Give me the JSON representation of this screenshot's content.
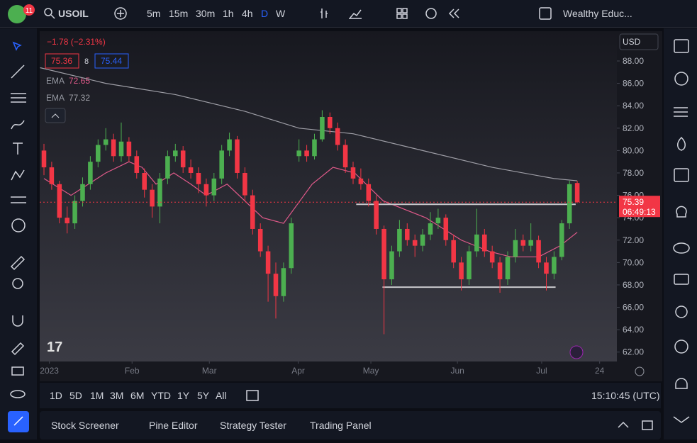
{
  "toolbar": {
    "badge": "11",
    "symbol": "USOIL",
    "intervals": [
      "5m",
      "15m",
      "30m",
      "1h",
      "4h",
      "D",
      "W"
    ],
    "layout_name": "Wealthy Educ..."
  },
  "chart_data": {
    "type": "candlestick",
    "change": "−1.78 (−2.31%)",
    "bid": "75.36",
    "spread": "8",
    "ask": "75.44",
    "currency": "USD",
    "up_color": "#4caf50",
    "down_color": "#f23645",
    "candles": [
      [
        80,
        80.6,
        77.8,
        78.5
      ],
      [
        78.5,
        79,
        76.5,
        77
      ],
      [
        77,
        77.3,
        73.5,
        74
      ],
      [
        74,
        75,
        72.6,
        73.5
      ],
      [
        73.5,
        76,
        73,
        75.5
      ],
      [
        75.5,
        77.6,
        75,
        77
      ],
      [
        77,
        79.5,
        76.5,
        79
      ],
      [
        79,
        81,
        78.5,
        80.5
      ],
      [
        80.5,
        82,
        80,
        81
      ],
      [
        81,
        81.5,
        79,
        79.5
      ],
      [
        79.5,
        82.5,
        79,
        80.8
      ],
      [
        80.8,
        81.2,
        79,
        79.5
      ],
      [
        79.5,
        80,
        77.5,
        78
      ],
      [
        78,
        78.4,
        75.8,
        76.5
      ],
      [
        76.5,
        77,
        74,
        75
      ],
      [
        75,
        78,
        73.5,
        77.5
      ],
      [
        77.5,
        80,
        77,
        79.5
      ],
      [
        79.5,
        80.6,
        79,
        80
      ],
      [
        80,
        80.4,
        78,
        78.5
      ],
      [
        78.5,
        79.2,
        77.5,
        78
      ],
      [
        78,
        78.5,
        76.2,
        77
      ],
      [
        77,
        77.5,
        75,
        76
      ],
      [
        76,
        78,
        75.5,
        77.5
      ],
      [
        77.5,
        80.5,
        77,
        80
      ],
      [
        80,
        81.6,
        79.5,
        81
      ],
      [
        81,
        81.3,
        77.5,
        78
      ],
      [
        78,
        78.5,
        75.5,
        76
      ],
      [
        76,
        76.5,
        72.5,
        73
      ],
      [
        73,
        73.5,
        70.5,
        71
      ],
      [
        71,
        71.5,
        66.5,
        69
      ],
      [
        69,
        70,
        65,
        67
      ],
      [
        67,
        70,
        66.5,
        69.5
      ],
      [
        69.5,
        74,
        69,
        73.5
      ],
      [
        79.5,
        81,
        79,
        80
      ],
      [
        80,
        80.5,
        79,
        79.5
      ],
      [
        79.5,
        81.5,
        79.2,
        81
      ],
      [
        81,
        83.6,
        80.8,
        83
      ],
      [
        83,
        83.4,
        81.5,
        82
      ],
      [
        82,
        82.5,
        80,
        80.5
      ],
      [
        80.5,
        81,
        78,
        78.5
      ],
      [
        78.5,
        79,
        77,
        77.5
      ],
      [
        77.5,
        78.4,
        76.5,
        77
      ],
      [
        77,
        77.5,
        75,
        75.5
      ],
      [
        75.5,
        76,
        72.5,
        73
      ],
      [
        73,
        73.3,
        63.6,
        68.5
      ],
      [
        68.5,
        71.5,
        68,
        71
      ],
      [
        71,
        73.8,
        70.5,
        73
      ],
      [
        73,
        73.5,
        71.5,
        72
      ],
      [
        72,
        72.5,
        70.5,
        71.5
      ],
      [
        71.5,
        73,
        71,
        72.5
      ],
      [
        72.5,
        74.5,
        72,
        73.5
      ],
      [
        73.5,
        74.8,
        73,
        74
      ],
      [
        74,
        74.3,
        71.5,
        72
      ],
      [
        72,
        72.5,
        69.5,
        70
      ],
      [
        70,
        70.5,
        67.5,
        68.5
      ],
      [
        68.5,
        71.5,
        68,
        71
      ],
      [
        71,
        74.8,
        70.5,
        72.5
      ],
      [
        72.5,
        73,
        70.5,
        71
      ],
      [
        71,
        71.5,
        69.5,
        70
      ],
      [
        70,
        70.5,
        67.3,
        68.5
      ],
      [
        68.5,
        71,
        68,
        70.5
      ],
      [
        70.5,
        73,
        70,
        72
      ],
      [
        72,
        72.5,
        71,
        71.5
      ],
      [
        71.5,
        73.5,
        71,
        72
      ],
      [
        72,
        72.4,
        69.5,
        70
      ],
      [
        70,
        70.5,
        67.5,
        69
      ],
      [
        69,
        71,
        68.5,
        70.5
      ],
      [
        70.5,
        73.8,
        70.2,
        73.5
      ],
      [
        73.5,
        77.3,
        73,
        77
      ],
      [
        77.1,
        77.3,
        75.3,
        75.4
      ]
    ],
    "series": [
      {
        "name": "EMA",
        "value_label": "72.65",
        "color": "#e05a8a",
        "x": [
          0,
          3.5,
          8,
          11,
          12.7,
          14.5,
          16.8,
          19,
          21,
          23.7,
          28.3,
          31,
          34.7,
          37.4,
          40.2,
          43.9,
          49.4,
          54,
          57.6,
          60.4,
          64,
          66.8,
          69
        ],
        "values": [
          77.5,
          76,
          78,
          79,
          78.5,
          77,
          78,
          77,
          76,
          77,
          74,
          73.5,
          77,
          78.5,
          78,
          75.5,
          74,
          72,
          71,
          70.5,
          70.5,
          71.5,
          72.7
        ]
      },
      {
        "name": "EMA",
        "value_label": "77.32",
        "color": "#9e9ea6",
        "x": [
          -0.5,
          8,
          17,
          26,
          33,
          40,
          49,
          58,
          66,
          69
        ],
        "values": [
          87.4,
          86,
          85,
          83.5,
          82,
          81.5,
          80,
          78.5,
          77.5,
          77.3
        ]
      }
    ],
    "lines": [
      {
        "y": 75.2,
        "x": [
          40.4,
          68.8
        ]
      },
      {
        "y": 67.8,
        "x": [
          43.8,
          66.2
        ]
      }
    ],
    "price_label": {
      "value": 75.39,
      "label": "75.39"
    },
    "countdown": "06:49:13",
    "xlim": [
      -0.55,
      74.13
    ],
    "xticks": [
      {
        "value": 0.7,
        "label": "2023"
      },
      {
        "value": 11.4,
        "label": "Feb"
      },
      {
        "value": 21.4,
        "label": "Mar"
      },
      {
        "value": 32.9,
        "label": "Apr"
      },
      {
        "value": 42.3,
        "label": "May"
      },
      {
        "value": 53.5,
        "label": "Jun"
      },
      {
        "value": 64.4,
        "label": "Jul"
      },
      {
        "value": 71.9,
        "label": "24"
      }
    ],
    "ylim": [
      61.16,
      90.66
    ],
    "yticks": [
      {
        "value": 62,
        "label": "62.00"
      },
      {
        "value": 64,
        "label": "64.00"
      },
      {
        "value": 66,
        "label": "66.00"
      },
      {
        "value": 68,
        "label": "68.00"
      },
      {
        "value": 70,
        "label": "70.00"
      },
      {
        "value": 72,
        "label": "72.00"
      },
      {
        "value": 74,
        "label": "74.00"
      },
      {
        "value": 76,
        "label": "76.00"
      },
      {
        "value": 78,
        "label": "78.00"
      },
      {
        "value": 80,
        "label": "80.00"
      },
      {
        "value": 82,
        "label": "82.00"
      },
      {
        "value": 84,
        "label": "84.00"
      },
      {
        "value": 86,
        "label": "86.00"
      },
      {
        "value": 88,
        "label": "88.00"
      }
    ]
  },
  "range_bar": {
    "ranges": [
      "1D",
      "5D",
      "1M",
      "3M",
      "6M",
      "YTD",
      "1Y",
      "5Y",
      "All"
    ],
    "clock": "15:10:45 (UTC)"
  },
  "bottom_panel": {
    "tabs": [
      "Stock Screener",
      "Pine Editor",
      "Strategy Tester",
      "Trading Panel"
    ]
  }
}
